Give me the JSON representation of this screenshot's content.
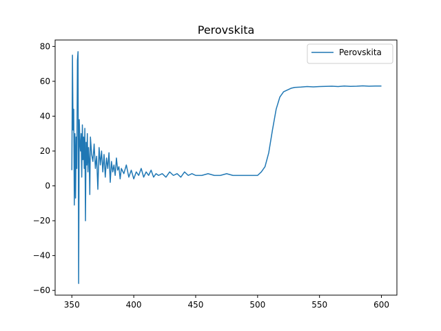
{
  "chart_data": {
    "type": "line",
    "title": "Perovskita",
    "xlabel": "",
    "ylabel": "",
    "xlim": [
      336.5,
      612.5
    ],
    "ylim": [
      -62.7,
      83.7
    ],
    "xticks": [
      350,
      400,
      450,
      500,
      550,
      600
    ],
    "yticks": [
      -60,
      -40,
      -20,
      0,
      20,
      40,
      60,
      80
    ],
    "grid": false,
    "legend": {
      "position": "top-right",
      "entries": [
        "Perovskita"
      ]
    },
    "series": [
      {
        "name": "Perovskita",
        "color": "#1f77b4",
        "x": [
          350,
          350.5,
          351,
          351.5,
          352,
          352.5,
          353,
          353.5,
          354,
          354.5,
          355,
          355.5,
          356,
          356.5,
          357,
          357.5,
          358,
          358.5,
          359,
          359.5,
          360,
          360.5,
          361,
          361.5,
          362,
          362.5,
          363,
          363.5,
          364,
          364.5,
          365,
          366,
          367,
          368,
          369,
          370,
          371,
          372,
          373,
          374,
          375,
          376,
          377,
          378,
          379,
          380,
          381,
          382,
          383,
          384,
          385,
          386,
          387,
          388,
          389,
          390,
          392,
          394,
          396,
          398,
          400,
          402,
          404,
          406,
          408,
          410,
          412,
          414,
          416,
          418,
          420,
          423,
          426,
          429,
          432,
          435,
          438,
          441,
          444,
          447,
          450,
          455,
          460,
          465,
          470,
          475,
          480,
          485,
          490,
          495,
          500,
          503,
          506,
          509,
          512,
          515,
          518,
          521,
          524,
          527,
          530,
          535,
          540,
          545,
          550,
          555,
          560,
          565,
          570,
          575,
          580,
          585,
          590,
          595,
          600
        ],
        "y": [
          9,
          75,
          32,
          44,
          -11,
          30,
          -7,
          28,
          10,
          72,
          77,
          -56,
          38,
          25,
          20,
          30,
          5,
          35,
          15,
          28,
          10,
          33,
          -20,
          25,
          12,
          30,
          8,
          22,
          15,
          -5,
          28,
          18,
          14,
          24,
          10,
          17,
          -2,
          22,
          12,
          20,
          8,
          18,
          5,
          16,
          10,
          19,
          2,
          14,
          8,
          12,
          6,
          16,
          9,
          11,
          4,
          10,
          7,
          12,
          5,
          9,
          4,
          8,
          6,
          10,
          5,
          8,
          6,
          9,
          5,
          7,
          6,
          7,
          5,
          8,
          6,
          7,
          5,
          8,
          6,
          7,
          6,
          6,
          7,
          6,
          6,
          7,
          6,
          6,
          6,
          6,
          6,
          8,
          11,
          19,
          32,
          44,
          51,
          54,
          55,
          56,
          56.5,
          56.7,
          57,
          56.8,
          57,
          57.1,
          57.2,
          57,
          57.3,
          57.1,
          57.2,
          57.4,
          57.2,
          57.3,
          57.3
        ]
      }
    ]
  }
}
